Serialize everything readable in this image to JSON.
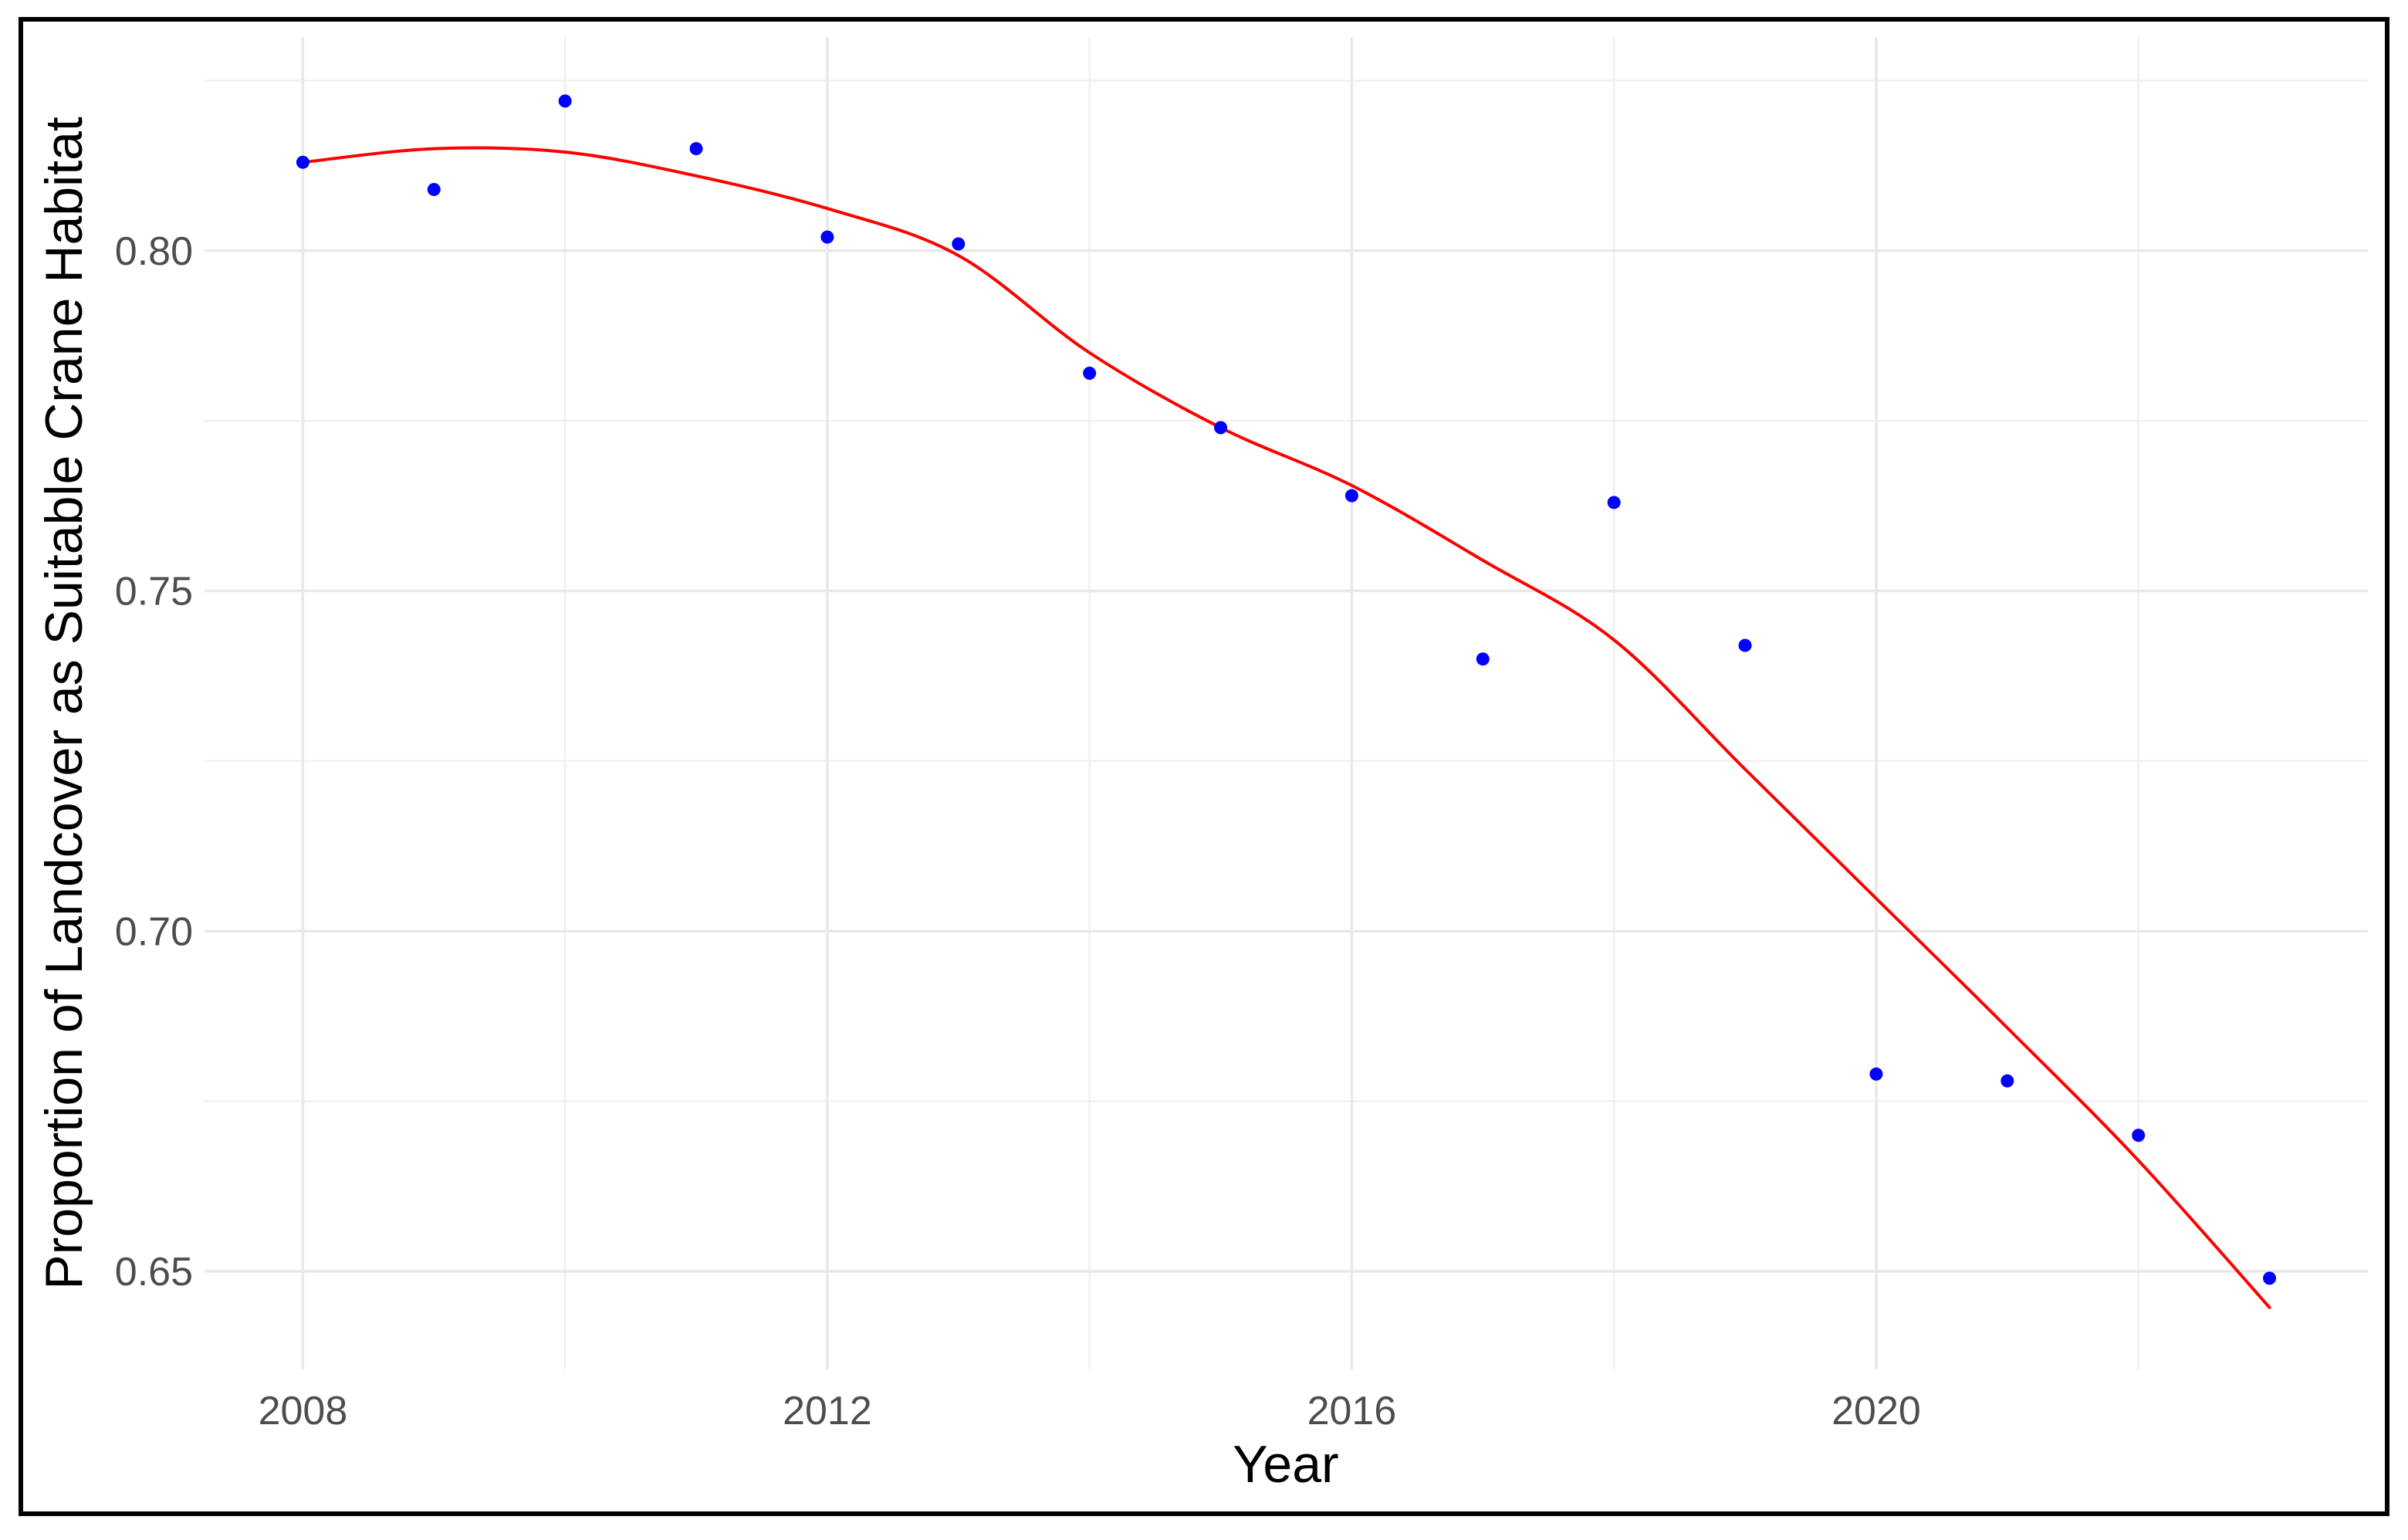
{
  "figure": {
    "background_color": "#ffffff",
    "border_color": "#000000",
    "xlabel": "Year",
    "ylabel": "Proportion of Landcover as Suitable Crane Habitat"
  },
  "chart_data": {
    "type": "scatter",
    "title": "",
    "xlabel": "Year",
    "ylabel": "Proportion of Landcover as Suitable Crane Habitat",
    "grid": true,
    "legend": false,
    "xlim": [
      2007.25,
      2023.75
    ],
    "ylim": [
      0.6356,
      0.8314
    ],
    "x_breaks": [
      2008,
      2012,
      2016,
      2020
    ],
    "x_tick_labels": [
      "2008",
      "2012",
      "2016",
      "2020"
    ],
    "x_minor_breaks": [
      2010,
      2014,
      2018,
      2022
    ],
    "y_breaks": [
      0.65,
      0.7,
      0.75,
      0.8
    ],
    "y_tick_labels": [
      "0.65",
      "0.70",
      "0.75",
      "0.80"
    ],
    "y_minor_breaks": [
      0.675,
      0.725,
      0.775,
      0.825
    ],
    "colors": {
      "point": "#0000ff",
      "smooth_line": "#ff0000",
      "grid_major": "#e8e8e8",
      "grid_minor": "#f0f0f0",
      "tick_text": "#4d4d4d",
      "title_text": "#000000"
    },
    "series": [
      {
        "name": "observed-proportion",
        "type": "scatter",
        "color": "#0000ff",
        "x": [
          2008,
          2009,
          2010,
          2011,
          2012,
          2013,
          2014,
          2015,
          2016,
          2017,
          2018,
          2019,
          2020,
          2021,
          2022,
          2023
        ],
        "y": [
          0.813,
          0.809,
          0.822,
          0.815,
          0.802,
          0.801,
          0.782,
          0.774,
          0.764,
          0.74,
          0.763,
          0.742,
          0.679,
          0.678,
          0.67,
          0.649
        ]
      },
      {
        "name": "loess-smooth",
        "type": "line",
        "color": "#ff0000",
        "x": [
          2008,
          2009,
          2010,
          2011,
          2012,
          2013,
          2014,
          2015,
          2016,
          2017,
          2018,
          2019,
          2020,
          2021,
          2022,
          2023
        ],
        "y": [
          0.813,
          0.815,
          0.8145,
          0.811,
          0.8062,
          0.7993,
          0.785,
          0.774,
          0.7655,
          0.7545,
          0.7428,
          0.7238,
          0.7048,
          0.6858,
          0.6663,
          0.6447
        ]
      }
    ]
  }
}
